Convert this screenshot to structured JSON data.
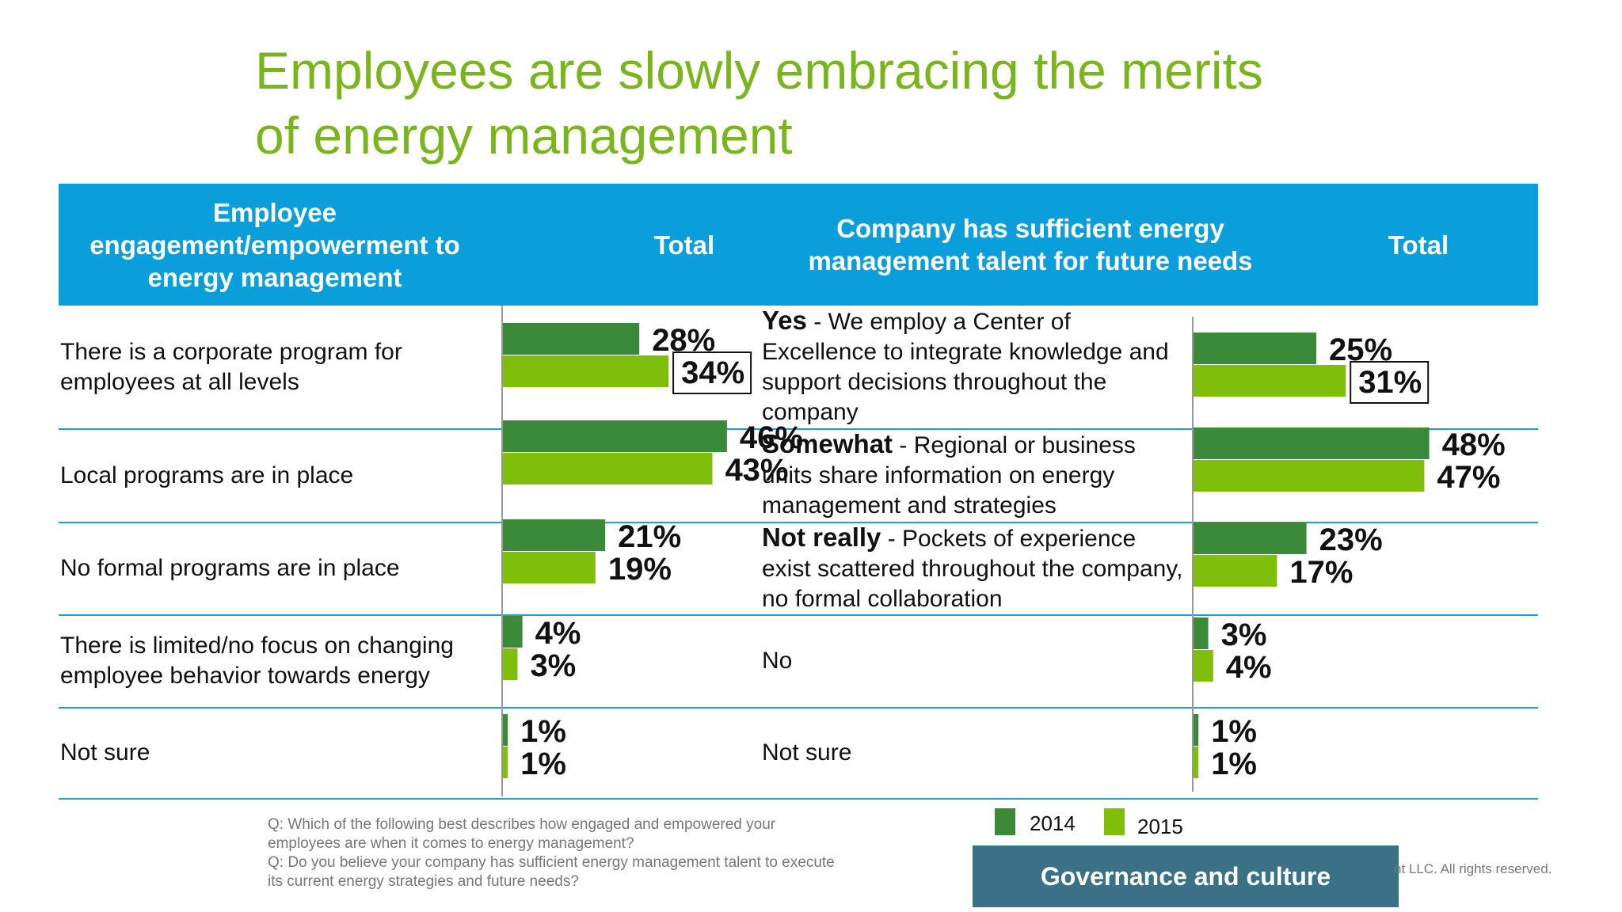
{
  "title_line1": "Employees are slowly embracing the merits",
  "title_line2": "of energy management",
  "colors": {
    "series_2014": "#3a8a3a",
    "series_2015": "#7fbf0c",
    "header_bg": "#0a9edb",
    "title": "#7ab51d",
    "badge_bg": "#3b7187"
  },
  "header": {
    "col1": "Employee engagement/empowerment to energy management",
    "col2": "Total",
    "col3": "Company has sufficient energy management talent for future needs",
    "col4": "Total"
  },
  "left_rows": [
    "There is a corporate program for employees at all levels",
    "Local programs are in place",
    "No formal programs are in place",
    "There is limited/no focus on changing employee behavior towards energy",
    "Not sure"
  ],
  "right_rows": [
    {
      "lead": "Yes",
      "rest": " - We employ a Center of Excellence to integrate knowledge and support decisions throughout the company"
    },
    {
      "lead": "Somewhat",
      "rest": " - Regional or business units share information on energy management and strategies"
    },
    {
      "lead": "Not really",
      "rest": " - Pockets of experience exist scattered throughout the company, no formal collaboration"
    },
    {
      "lead": "",
      "rest": "No"
    },
    {
      "lead": "",
      "rest": "Not sure"
    }
  ],
  "chart_data": [
    {
      "type": "bar",
      "categories": [
        "There is a corporate program for employees at all levels",
        "Local programs are in place",
        "No formal programs are in place",
        "There is limited/no focus on changing employee behavior towards energy",
        "Not sure"
      ],
      "series": [
        {
          "name": "2014",
          "values": [
            28,
            46,
            21,
            4,
            1
          ],
          "labels": [
            "28%",
            "46%",
            "21%",
            "4%",
            "1%"
          ]
        },
        {
          "name": "2015",
          "values": [
            34,
            43,
            19,
            3,
            1
          ],
          "labels": [
            "34%",
            "43%",
            "19%",
            "3%",
            "1%"
          ]
        }
      ],
      "highlighted": {
        "series": "2015",
        "index": 0
      }
    },
    {
      "type": "bar",
      "categories": [
        "Yes",
        "Somewhat",
        "Not really",
        "No",
        "Not sure"
      ],
      "series": [
        {
          "name": "2014",
          "values": [
            25,
            48,
            23,
            3,
            1
          ],
          "labels": [
            "25%",
            "48%",
            "23%",
            "3%",
            "1%"
          ]
        },
        {
          "name": "2015",
          "values": [
            31,
            47,
            17,
            4,
            1
          ],
          "labels": [
            "31%",
            "47%",
            "17%",
            "4%",
            "1%"
          ]
        }
      ],
      "highlighted": {
        "series": "2015",
        "index": 0
      }
    }
  ],
  "legend": {
    "label_2014": "2014",
    "label_2015": "2015"
  },
  "footnote": {
    "q1": "Q: Which of the following best describes how engaged and empowered your employees are when it comes to energy management?",
    "q2": "Q: Do you believe your company has sufficient energy management talent to execute its current energy strategies and future needs?"
  },
  "badge": "Governance and culture",
  "copyright": "nt LLC. All rights reserved."
}
